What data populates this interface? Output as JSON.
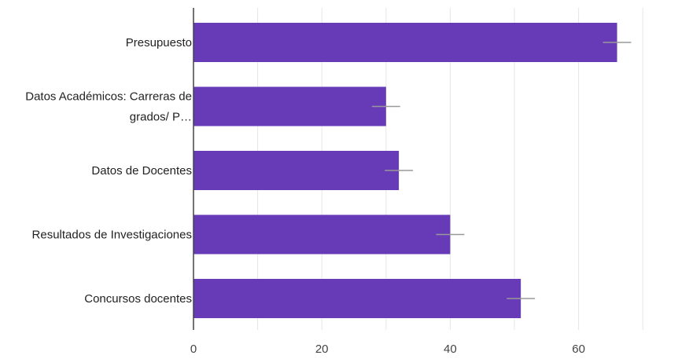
{
  "chart_data": {
    "type": "bar",
    "orientation": "horizontal",
    "categories": [
      "Presupuesto",
      "Datos Académicos: Carreras de grados/ P…",
      "Datos de Docentes",
      "Resultados de Investigaciones",
      "Concursos docentes"
    ],
    "category_label_lines": [
      [
        "Presupuesto"
      ],
      [
        "Datos Académicos: Carreras de",
        "grados/ P…"
      ],
      [
        "Datos de Docentes"
      ],
      [
        "Resultados de Investigaciones"
      ],
      [
        "Concursos docentes"
      ]
    ],
    "series": [
      {
        "values": [
          66,
          30,
          32,
          40,
          51
        ],
        "color": "#673ab7"
      }
    ],
    "xlim": [
      0,
      75
    ],
    "xticks": [
      0,
      20,
      40,
      60
    ],
    "xtick_labels": [
      "0",
      "20",
      "40",
      "60"
    ],
    "grid": true,
    "title": "",
    "xlabel": "",
    "ylabel": "",
    "colors": {
      "bar": "#673ab7",
      "grid": "#e6e6e6",
      "axis": "#444444",
      "error_bar": "#999999"
    }
  }
}
